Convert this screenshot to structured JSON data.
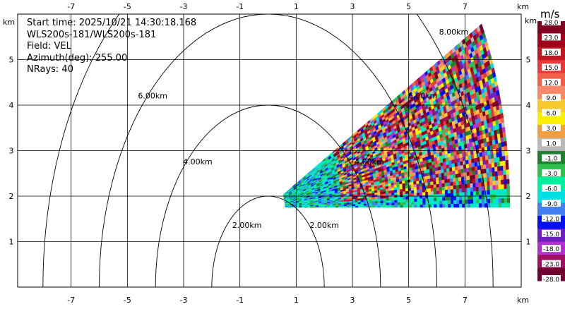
{
  "info": {
    "start_time": "Start time: 2025/10/21 14:30:18.168",
    "instrument": "WLS200s-181/WLS200s-181",
    "field": "Field: VEL",
    "azimuth": "Azimuth(deg): 255.00",
    "nrays": "NRays: 40"
  },
  "chart_data": {
    "type": "heatmap",
    "subtype": "RHI radar scan",
    "x_unit": "km",
    "y_unit": "km",
    "x_ticks": [
      -7,
      -5,
      -3,
      -1,
      1,
      3,
      5,
      7
    ],
    "y_ticks": [
      1,
      2,
      3,
      4,
      5
    ],
    "xlim": [
      -8.9,
      9.0
    ],
    "ylim": [
      0.0,
      6.0
    ],
    "grid": true,
    "origin": {
      "x": 0.0,
      "y": 2.0
    },
    "range_rings": [
      {
        "radius": 2,
        "label": "2.00km"
      },
      {
        "radius": 4,
        "label": "4.00km"
      },
      {
        "radius": 6,
        "label": "6.00km"
      },
      {
        "radius": 8,
        "label": "8.00km"
      }
    ],
    "scan": {
      "elevation_min_deg": 0,
      "elevation_max_deg": 28,
      "nrays": 40,
      "range_min_km": 0.6,
      "range_max_km": 8.6,
      "gate_km": 0.1
    },
    "colorbar": {
      "unit": "m/s",
      "labels": [
        "28.0",
        "23.0",
        "18.0",
        "15.0",
        "12.0",
        "9.0",
        "6.0",
        "3.0",
        "1.0",
        "-1.0",
        "-3.0",
        "-6.0",
        "-9.0",
        "-12.0",
        "-15.0",
        "-18.0",
        "-23.0",
        "-28.0"
      ],
      "colors": [
        "#800020",
        "#a00018",
        "#c01820",
        "#e83838",
        "#f06048",
        "#f88868",
        "#f8c830",
        "#f8f000",
        "#f0a040",
        "#b8b8b8",
        "#208030",
        "#30c050",
        "#00f0a0",
        "#00e0e0",
        "#4080f0",
        "#0010f0",
        "#7020c0",
        "#b030d0",
        "#a01060",
        "#700030"
      ]
    }
  }
}
